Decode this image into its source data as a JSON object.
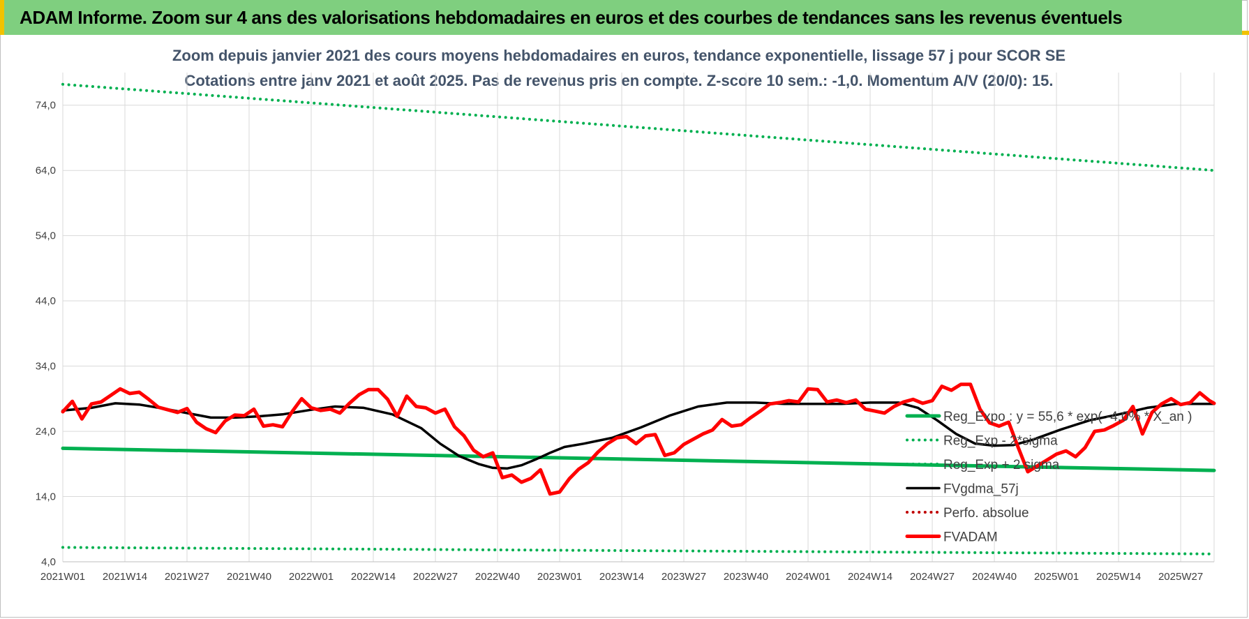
{
  "banner": {
    "title": "ADAM Informe. Zoom sur 4 ans des valorisations hebdomadaires en euros et des courbes de tendances sans les revenus éventuels"
  },
  "colors": {
    "banner_bg": "#7fcf7f",
    "banner_accent": "#f2c200",
    "trend_green": "#00b050",
    "fvgdma_black": "#000000",
    "fvadam_red": "#ff0000",
    "perfo_red": "#c00000",
    "grid": "#d9d9d9",
    "title_text": "#44546a"
  },
  "chart_data": {
    "type": "line",
    "title": "Zoom depuis janvier 2021 des cours moyens hebdomadaires en euros, tendance exponentielle, lissage 57 j pour SCOR SE",
    "subtitle": "Cotations entre janv 2021 et août 2025. Pas de revenus pris en compte. Z-score 10 sem.: -1,0. Momentum A/V (20/0): 15.",
    "xlabel": "",
    "ylabel": "",
    "ylim": [
      4,
      79
    ],
    "yticks": [
      4,
      14,
      24,
      34,
      44,
      54,
      64,
      74
    ],
    "ytick_labels": [
      "4,0",
      "14,0",
      "24,0",
      "34,0",
      "44,0",
      "54,0",
      "64,0",
      "74,0"
    ],
    "xlim": [
      1,
      242
    ],
    "xticks": [
      1,
      14,
      27,
      40,
      53,
      66,
      79,
      92,
      105,
      118,
      131,
      144,
      157,
      170,
      183,
      196,
      209,
      222,
      235
    ],
    "xtick_labels": [
      "2021W01",
      "2021W14",
      "2021W27",
      "2021W40",
      "2022W01",
      "2022W14",
      "2022W27",
      "2022W40",
      "2023W01",
      "2023W14",
      "2023W27",
      "2023W40",
      "2024W01",
      "2024W14",
      "2024W27",
      "2024W40",
      "2025W01",
      "2025W14",
      "2025W27"
    ],
    "grid": true,
    "legend_position": "right",
    "series": [
      {
        "name": "Reg_Expo : y = 55,6 * exp( -4,0% * X_an )",
        "style": "solid-thick",
        "color": "#00b050",
        "x": [
          1,
          242
        ],
        "y": [
          21.4,
          18.0
        ]
      },
      {
        "name": "Reg_Exp - 2*sigma",
        "style": "dotted",
        "color": "#00b050",
        "x": [
          1,
          242
        ],
        "y": [
          6.2,
          5.2
        ]
      },
      {
        "name": "Reg_Exp + 2 sigma",
        "style": "dotted",
        "color": "#00b050",
        "x": [
          1,
          242
        ],
        "y": [
          77.2,
          64.0
        ]
      },
      {
        "name": "FVgdma_57j",
        "style": "solid",
        "color": "#000000",
        "x": [
          1,
          7,
          12,
          17,
          22,
          27,
          32,
          37,
          42,
          47,
          53,
          58,
          64,
          70,
          76,
          80,
          84,
          88,
          91,
          94,
          97,
          100,
          103,
          106,
          110,
          116,
          122,
          128,
          134,
          140,
          146,
          152,
          158,
          164,
          170,
          176,
          180,
          184,
          188,
          192,
          196,
          200,
          204,
          210,
          216,
          222,
          228,
          234,
          242
        ],
        "y": [
          27.2,
          27.6,
          28.3,
          28.1,
          27.5,
          26.8,
          26.1,
          26.1,
          26.3,
          26.6,
          27.3,
          27.8,
          27.6,
          26.6,
          24.5,
          22.1,
          20.2,
          19.0,
          18.4,
          18.3,
          18.8,
          19.7,
          20.7,
          21.6,
          22.1,
          23.0,
          24.6,
          26.4,
          27.8,
          28.4,
          28.4,
          28.2,
          28.2,
          28.2,
          28.4,
          28.4,
          27.6,
          25.7,
          23.6,
          22.1,
          21.8,
          21.9,
          22.7,
          24.3,
          25.7,
          26.6,
          27.6,
          28.2,
          28.2
        ]
      },
      {
        "name": "Perfo. absolue",
        "style": "dotted",
        "color": "#c00000",
        "x": [],
        "y": []
      },
      {
        "name": "FVADAM",
        "style": "solid-thick",
        "color": "#ff0000",
        "x": [
          1,
          3,
          5,
          7,
          9,
          11,
          13,
          15,
          17,
          19,
          21,
          23,
          25,
          27,
          29,
          31,
          33,
          35,
          37,
          39,
          41,
          43,
          45,
          47,
          49,
          51,
          53,
          55,
          57,
          59,
          61,
          63,
          65,
          67,
          69,
          71,
          73,
          75,
          77,
          79,
          81,
          83,
          85,
          87,
          89,
          91,
          93,
          95,
          97,
          99,
          101,
          103,
          105,
          107,
          109,
          111,
          113,
          115,
          117,
          119,
          121,
          123,
          125,
          127,
          129,
          131,
          133,
          135,
          137,
          139,
          141,
          143,
          145,
          147,
          149,
          151,
          153,
          155,
          157,
          159,
          161,
          163,
          165,
          167,
          169,
          171,
          173,
          175,
          177,
          179,
          181,
          183,
          185,
          187,
          189,
          191,
          193,
          195,
          197,
          199,
          201,
          203,
          205,
          207,
          209,
          211,
          213,
          215,
          217,
          219,
          221,
          223,
          225,
          227,
          229,
          231,
          233,
          235,
          237,
          239,
          241,
          242
        ],
        "y": [
          27.0,
          28.6,
          25.9,
          28.2,
          28.5,
          29.5,
          30.5,
          29.8,
          30.0,
          28.9,
          27.7,
          27.3,
          26.9,
          27.5,
          25.4,
          24.4,
          23.8,
          25.6,
          26.5,
          26.4,
          27.4,
          24.8,
          25.0,
          24.7,
          27.0,
          29.0,
          27.6,
          27.2,
          27.4,
          26.8,
          28.3,
          29.6,
          30.4,
          30.4,
          28.9,
          26.3,
          29.4,
          27.8,
          27.6,
          26.8,
          27.4,
          24.7,
          23.3,
          21.1,
          20.1,
          20.7,
          16.9,
          17.3,
          16.2,
          16.8,
          18.1,
          14.4,
          14.7,
          16.7,
          18.2,
          19.2,
          20.8,
          22.1,
          23.0,
          23.2,
          22.1,
          23.3,
          23.5,
          20.3,
          20.7,
          22.0,
          22.8,
          23.6,
          24.2,
          25.8,
          24.8,
          25.0,
          26.1,
          27.1,
          28.2,
          28.4,
          28.7,
          28.5,
          30.5,
          30.4,
          28.5,
          28.8,
          28.4,
          28.8,
          27.4,
          27.1,
          26.8,
          27.8,
          28.5,
          28.9,
          28.3,
          28.7,
          30.9,
          30.3,
          31.2,
          31.2,
          27.4,
          25.3,
          24.8,
          25.4,
          21.5,
          17.8,
          18.7,
          19.6,
          20.5,
          21.0,
          20.1,
          21.5,
          24.0,
          24.2,
          24.9,
          25.7,
          27.8,
          23.6,
          26.9,
          28.2,
          29.0,
          28.1,
          28.4,
          29.9,
          28.7,
          28.3
        ]
      }
    ],
    "legend": [
      "Reg_Expo : y = 55,6 * exp( -4,0% * X_an )",
      "Reg_Exp - 2*sigma",
      "Reg_Exp + 2 sigma",
      "FVgdma_57j",
      "Perfo. absolue",
      "FVADAM"
    ]
  }
}
